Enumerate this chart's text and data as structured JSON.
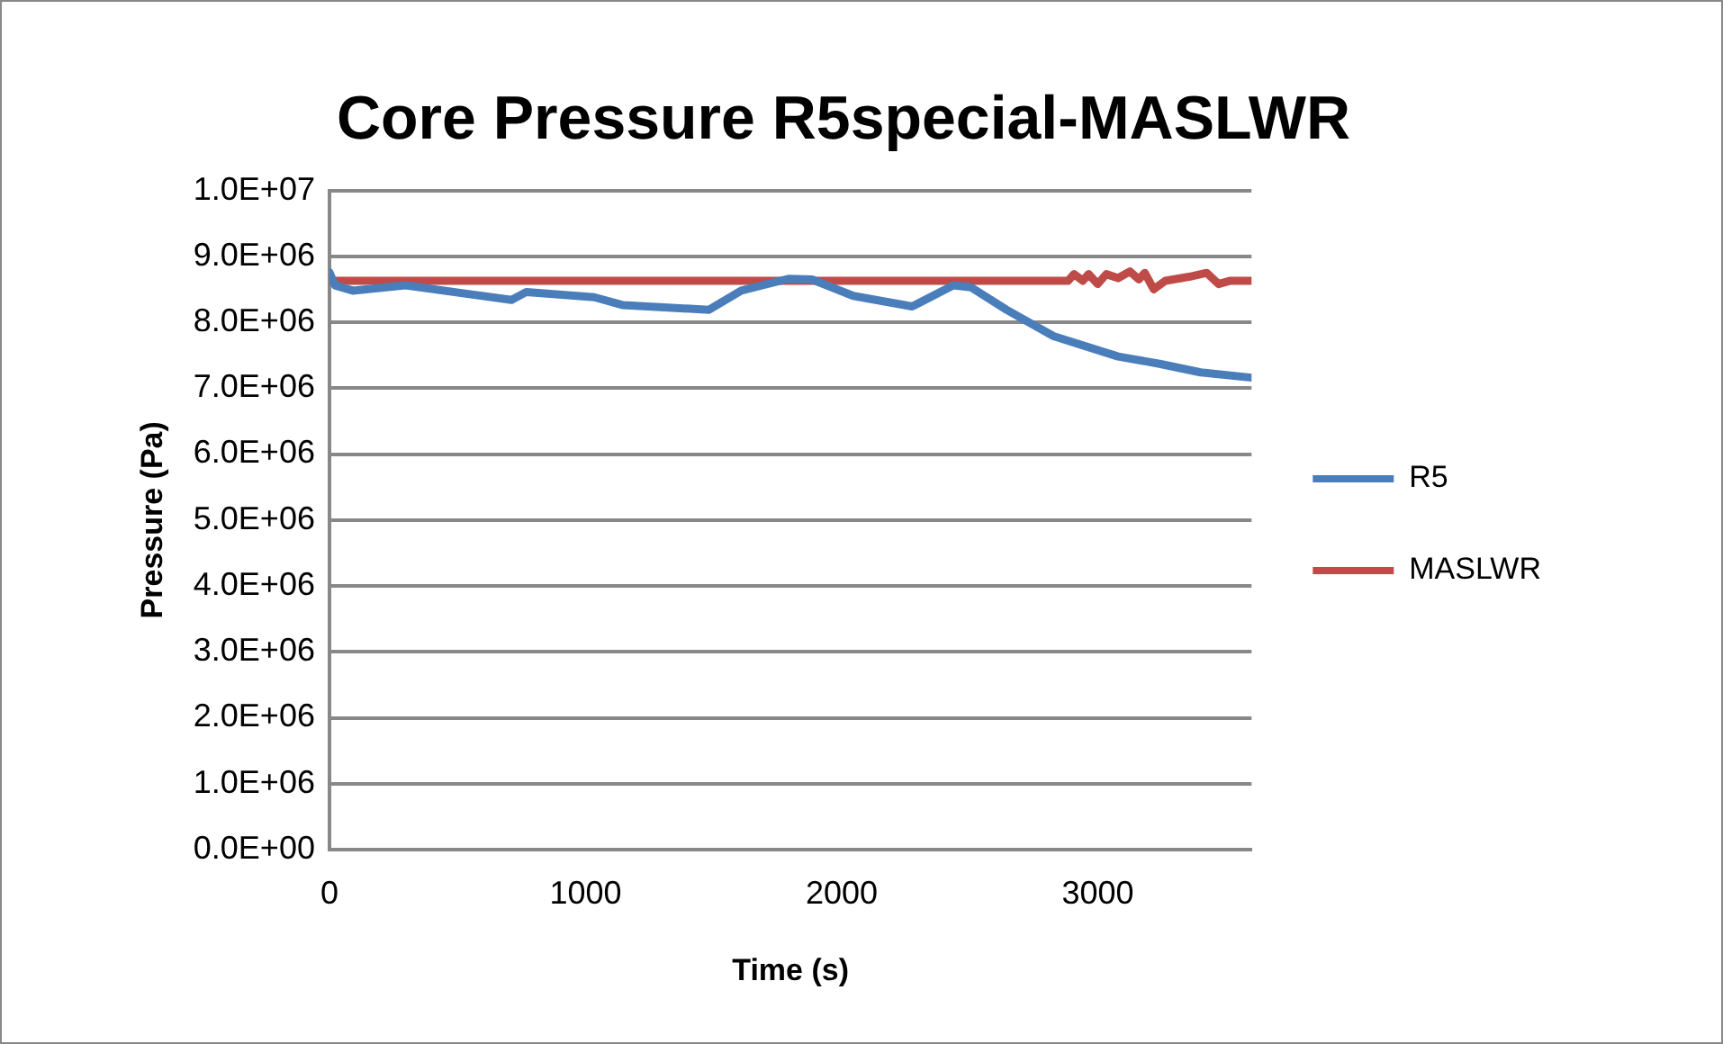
{
  "chart_data": {
    "type": "line",
    "title": "Core Pressure R5special-MASLWR",
    "xlabel": "Time (s)",
    "ylabel": "Pressure (Pa)",
    "xlim": [
      0,
      3600
    ],
    "xticks": [
      0,
      1000,
      2000,
      3000
    ],
    "ylim": [
      0,
      10000000
    ],
    "yticks": [
      {
        "value": 0,
        "label": "0.0E+00"
      },
      {
        "value": 1000000,
        "label": "1.0E+06"
      },
      {
        "value": 2000000,
        "label": "2.0E+06"
      },
      {
        "value": 3000000,
        "label": "3.0E+06"
      },
      {
        "value": 4000000,
        "label": "4.0E+06"
      },
      {
        "value": 5000000,
        "label": "5.0E+06"
      },
      {
        "value": 6000000,
        "label": "6.0E+06"
      },
      {
        "value": 7000000,
        "label": "7.0E+06"
      },
      {
        "value": 8000000,
        "label": "8.0E+06"
      },
      {
        "value": 9000000,
        "label": "9.0E+06"
      },
      {
        "value": 10000000,
        "label": "1.0E+07"
      }
    ],
    "grid": "y",
    "legend": "right",
    "marker": "none",
    "line_style": "solid",
    "series": [
      {
        "name": "R5",
        "color": "#4a7ebb",
        "x": [
          0,
          22,
          91,
          297,
          711,
          769,
          1034,
          1147,
          1482,
          1608,
          1792,
          1884,
          2045,
          2275,
          2436,
          2505,
          2643,
          2827,
          3079,
          3241,
          3401,
          3600
        ],
        "values": [
          8760000,
          8560000,
          8480000,
          8560000,
          8340000,
          8460000,
          8380000,
          8260000,
          8190000,
          8480000,
          8660000,
          8650000,
          8400000,
          8240000,
          8560000,
          8530000,
          8190000,
          7790000,
          7480000,
          7370000,
          7240000,
          7160000
        ]
      },
      {
        "name": "MASLWR",
        "color": "#be4b48",
        "x": [
          0,
          500,
          1000,
          1500,
          2000,
          2500,
          2884,
          2907,
          2941,
          2964,
          2999,
          3033,
          3079,
          3125,
          3160,
          3183,
          3218,
          3264,
          3356,
          3425,
          3471,
          3517,
          3600
        ],
        "values": [
          8630000,
          8630000,
          8630000,
          8630000,
          8630000,
          8630000,
          8630000,
          8730000,
          8630000,
          8730000,
          8580000,
          8730000,
          8670000,
          8770000,
          8650000,
          8750000,
          8500000,
          8630000,
          8690000,
          8750000,
          8580000,
          8630000,
          8630000
        ]
      }
    ]
  }
}
